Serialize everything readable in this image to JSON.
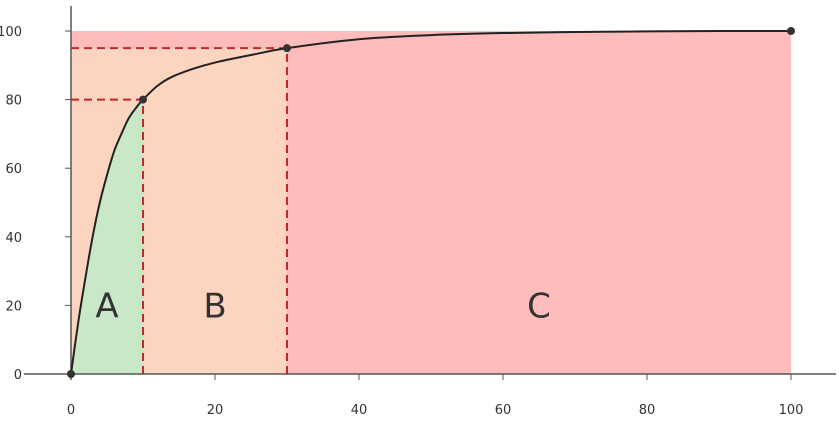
{
  "chart_data": {
    "type": "area",
    "xlim": [
      0,
      100
    ],
    "ylim": [
      0,
      100
    ],
    "x_ticks": [
      0,
      20,
      40,
      60,
      80,
      100
    ],
    "y_ticks": [
      0,
      20,
      40,
      60,
      80,
      100
    ],
    "x_tick_labels": [
      "0",
      "20",
      "40",
      "60",
      "80",
      "100"
    ],
    "y_tick_labels": [
      "0",
      "20",
      "40",
      "60",
      "80",
      "100"
    ],
    "grid": false,
    "curve_points": [
      {
        "x": 0,
        "y": 0
      },
      {
        "x": 1,
        "y": 15
      },
      {
        "x": 2,
        "y": 28
      },
      {
        "x": 3,
        "y": 40
      },
      {
        "x": 4,
        "y": 50
      },
      {
        "x": 5,
        "y": 58
      },
      {
        "x": 6,
        "y": 65
      },
      {
        "x": 7,
        "y": 70
      },
      {
        "x": 8,
        "y": 74.5
      },
      {
        "x": 9,
        "y": 77.5
      },
      {
        "x": 10,
        "y": 80
      },
      {
        "x": 12,
        "y": 84
      },
      {
        "x": 14,
        "y": 86.6
      },
      {
        "x": 17,
        "y": 89
      },
      {
        "x": 20,
        "y": 90.8
      },
      {
        "x": 25,
        "y": 93
      },
      {
        "x": 30,
        "y": 95
      },
      {
        "x": 40,
        "y": 97.6
      },
      {
        "x": 50,
        "y": 98.8
      },
      {
        "x": 60,
        "y": 99.4
      },
      {
        "x": 70,
        "y": 99.7
      },
      {
        "x": 80,
        "y": 99.9
      },
      {
        "x": 90,
        "y": 100
      },
      {
        "x": 100,
        "y": 100
      }
    ],
    "markers": [
      {
        "x": 0,
        "y": 0
      },
      {
        "x": 10,
        "y": 80
      },
      {
        "x": 30,
        "y": 95
      },
      {
        "x": 100,
        "y": 100
      }
    ],
    "regions": [
      {
        "label": "A",
        "x_start": 0,
        "x_end": 10,
        "color": "#c8e8c8"
      },
      {
        "label": "B",
        "x_start": 10,
        "x_end": 30,
        "color": "#fcd5c0"
      },
      {
        "label": "C",
        "x_start": 30,
        "x_end": 100,
        "color": "#ffbcbc"
      }
    ],
    "guide_lines": [
      {
        "x": 10,
        "y": 80
      },
      {
        "x": 30,
        "y": 95
      }
    ],
    "colors": {
      "curve": "#222222",
      "guide": "#c0282a",
      "axis": "#555555",
      "marker": "#333333"
    }
  }
}
